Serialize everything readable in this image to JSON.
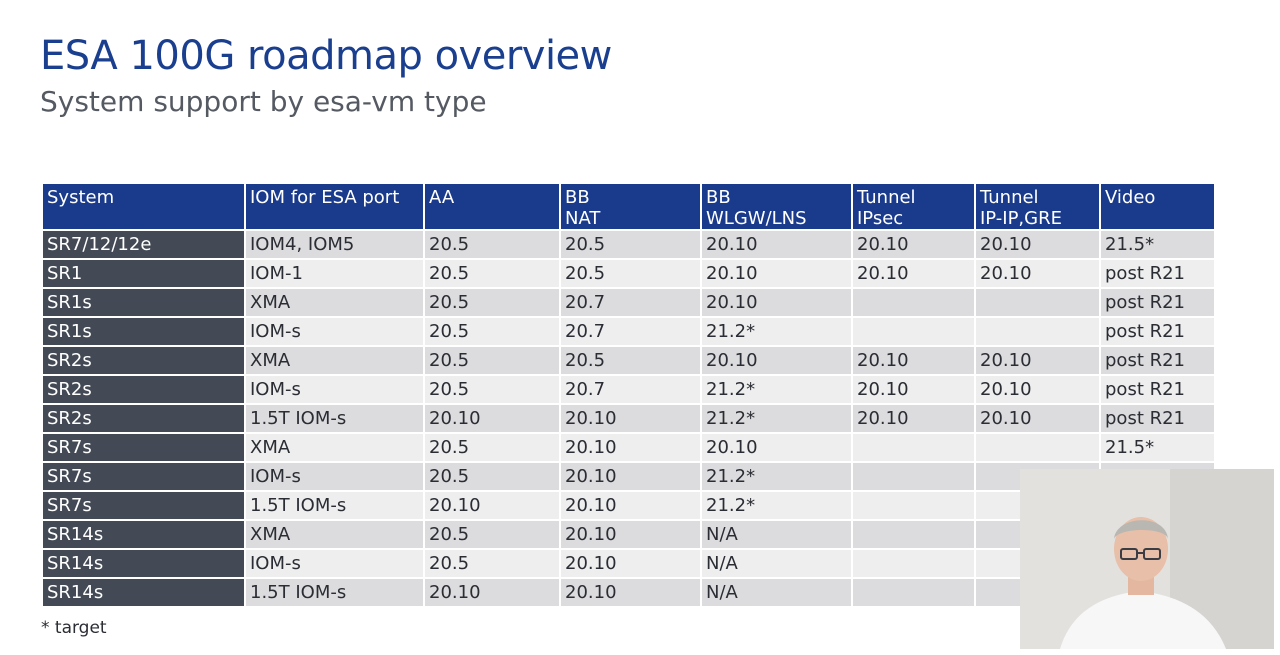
{
  "slide": {
    "title": "ESA 100G roadmap overview",
    "subtitle": "System support by esa-vm type",
    "footnote": "* target"
  },
  "table": {
    "headers": [
      [
        "System"
      ],
      [
        "IOM for ESA port"
      ],
      [
        "AA"
      ],
      [
        "BB",
        "NAT"
      ],
      [
        "BB",
        "WLGW/LNS"
      ],
      [
        "Tunnel",
        "IPsec"
      ],
      [
        "Tunnel",
        "IP-IP,GRE"
      ],
      [
        "Video"
      ]
    ],
    "rows": [
      [
        "SR7/12/12e",
        "IOM4, IOM5",
        "20.5",
        "20.5",
        "20.10",
        "20.10",
        "20.10",
        "21.5*"
      ],
      [
        "SR1",
        "IOM-1",
        "20.5",
        "20.5",
        "20.10",
        "20.10",
        "20.10",
        "post R21"
      ],
      [
        "SR1s",
        "XMA",
        "20.5",
        "20.7",
        "20.10",
        "",
        "",
        "post R21"
      ],
      [
        "SR1s",
        "IOM-s",
        "20.5",
        "20.7",
        "21.2*",
        "",
        "",
        "post R21"
      ],
      [
        "SR2s",
        "XMA",
        "20.5",
        "20.5",
        "20.10",
        "20.10",
        "20.10",
        "post R21"
      ],
      [
        "SR2s",
        "IOM-s",
        "20.5",
        "20.7",
        "21.2*",
        "20.10",
        "20.10",
        "post R21"
      ],
      [
        "SR2s",
        "1.5T IOM-s",
        "20.10",
        "20.10",
        "21.2*",
        "20.10",
        "20.10",
        "post R21"
      ],
      [
        "SR7s",
        "XMA",
        "20.5",
        "20.10",
        "20.10",
        "",
        "",
        "21.5*"
      ],
      [
        "SR7s",
        "IOM-s",
        "20.5",
        "20.10",
        "21.2*",
        "",
        "",
        ""
      ],
      [
        "SR7s",
        "1.5T IOM-s",
        "20.10",
        "20.10",
        "21.2*",
        "",
        "",
        ""
      ],
      [
        "SR14s",
        "XMA",
        "20.5",
        "20.10",
        "N/A",
        "",
        "",
        ""
      ],
      [
        "SR14s",
        "IOM-s",
        "20.5",
        "20.10",
        "N/A",
        "",
        "",
        ""
      ],
      [
        "SR14s",
        "1.5T IOM-s",
        "20.10",
        "20.10",
        "N/A",
        "",
        "",
        ""
      ]
    ]
  },
  "colors": {
    "title": "#1b3f8f",
    "header_bg": "#1a3b8c",
    "system_col_bg": "#434a55",
    "row_odd_bg": "#dcdcde",
    "row_even_bg": "#eeeeef"
  }
}
